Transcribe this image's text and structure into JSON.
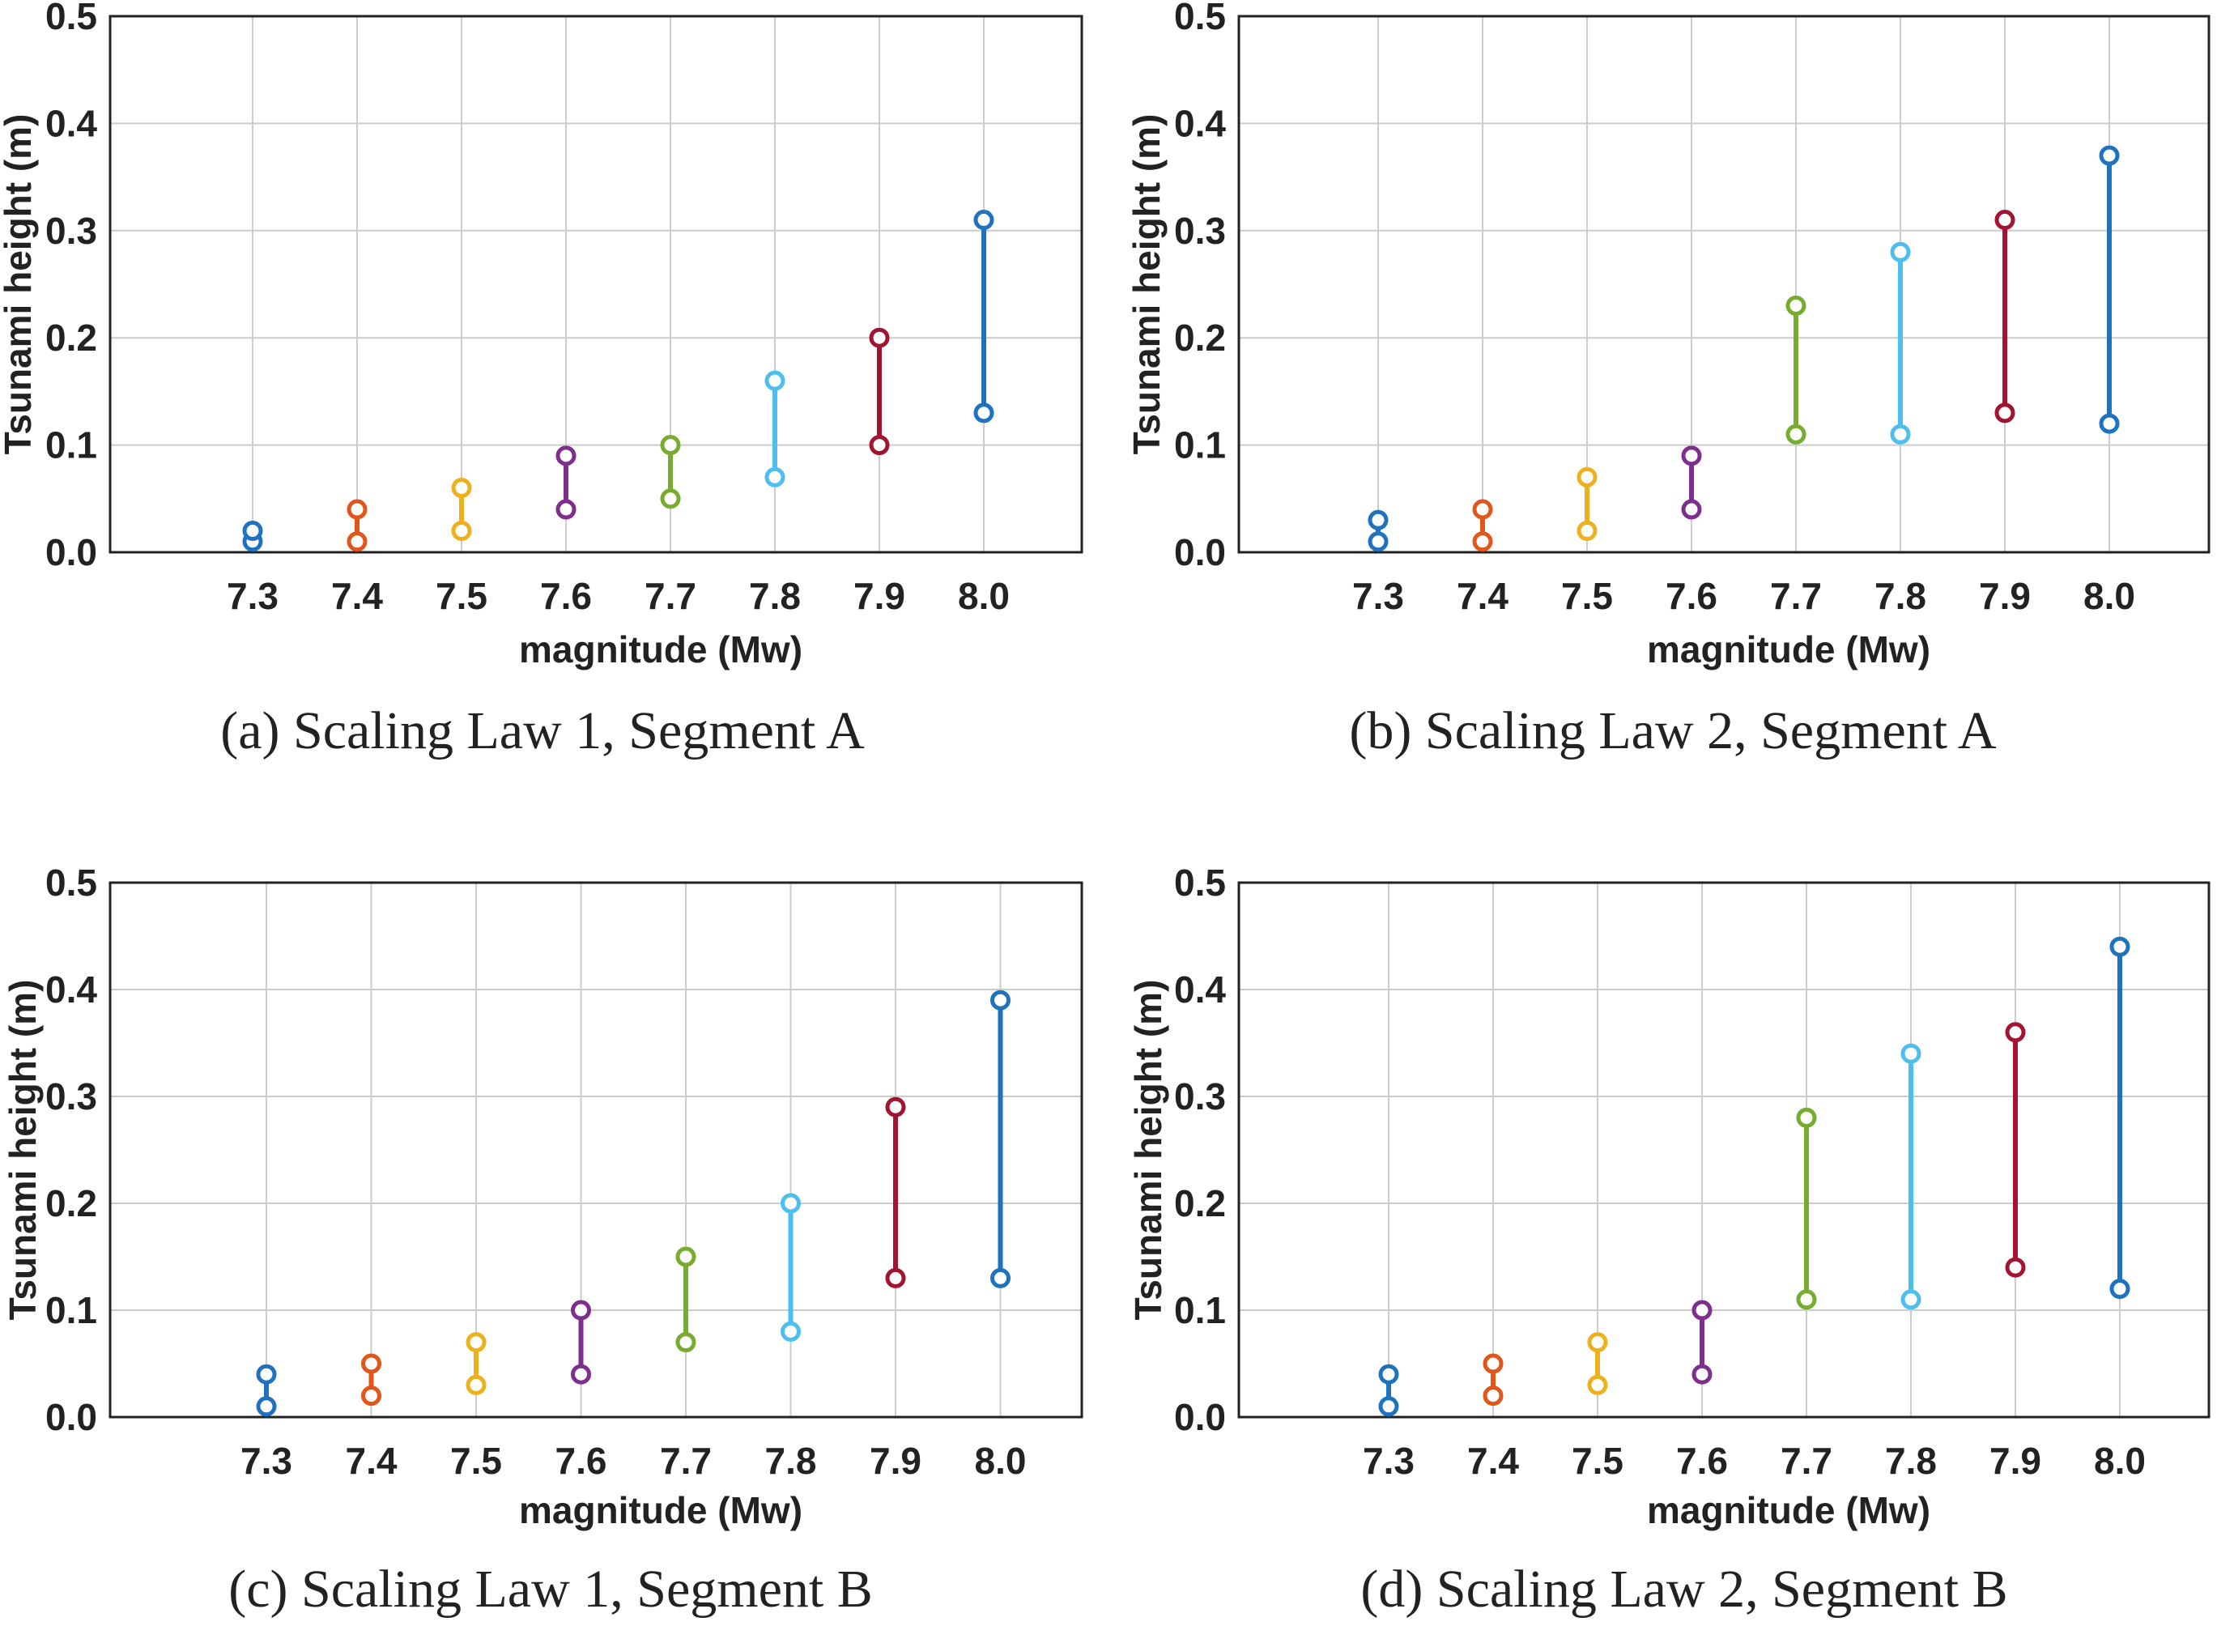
{
  "chart_data": [
    {
      "type": "range",
      "caption": "(a) Scaling Law 1, Segment A",
      "xlabel": "magnitude (Mw)",
      "ylabel": "Tsunami height (m)",
      "categories": [
        "7.3",
        "7.4",
        "7.5",
        "7.6",
        "7.7",
        "7.8",
        "7.9",
        "8.0"
      ],
      "yticks": [
        "0.0",
        "0.1",
        "0.2",
        "0.3",
        "0.4",
        "0.5"
      ],
      "ylim": [
        0,
        0.5
      ],
      "grid": true,
      "low": [
        0.01,
        0.01,
        0.02,
        0.04,
        0.05,
        0.07,
        0.1,
        0.13
      ],
      "high": [
        0.02,
        0.04,
        0.06,
        0.09,
        0.1,
        0.16,
        0.2,
        0.31
      ]
    },
    {
      "type": "range",
      "caption": "(b) Scaling Law 2, Segment A",
      "xlabel": "magnitude (Mw)",
      "ylabel": "Tsunami height (m)",
      "categories": [
        "7.3",
        "7.4",
        "7.5",
        "7.6",
        "7.7",
        "7.8",
        "7.9",
        "8.0"
      ],
      "yticks": [
        "0.0",
        "0.1",
        "0.2",
        "0.3",
        "0.4",
        "0.5"
      ],
      "ylim": [
        0,
        0.5
      ],
      "grid": true,
      "low": [
        0.01,
        0.01,
        0.02,
        0.04,
        0.11,
        0.11,
        0.13,
        0.12
      ],
      "high": [
        0.03,
        0.04,
        0.07,
        0.09,
        0.23,
        0.28,
        0.31,
        0.37
      ]
    },
    {
      "type": "range",
      "caption": "(c) Scaling Law 1, Segment B",
      "xlabel": "magnitude (Mw)",
      "ylabel": "Tsunami height (m)",
      "categories": [
        "7.3",
        "7.4",
        "7.5",
        "7.6",
        "7.7",
        "7.8",
        "7.9",
        "8.0"
      ],
      "yticks": [
        "0.0",
        "0.1",
        "0.2",
        "0.3",
        "0.4",
        "0.5"
      ],
      "ylim": [
        0,
        0.5
      ],
      "grid": true,
      "low": [
        0.01,
        0.02,
        0.03,
        0.04,
        0.07,
        0.08,
        0.13,
        0.13
      ],
      "high": [
        0.04,
        0.05,
        0.07,
        0.1,
        0.15,
        0.2,
        0.29,
        0.39
      ]
    },
    {
      "type": "range",
      "caption": "(d) Scaling Law 2, Segment B",
      "xlabel": "magnitude (Mw)",
      "ylabel": "Tsunami height (m)",
      "categories": [
        "7.3",
        "7.4",
        "7.5",
        "7.6",
        "7.7",
        "7.8",
        "7.9",
        "8.0"
      ],
      "yticks": [
        "0.0",
        "0.1",
        "0.2",
        "0.3",
        "0.4",
        "0.5"
      ],
      "ylim": [
        0,
        0.5
      ],
      "grid": true,
      "low": [
        0.01,
        0.02,
        0.03,
        0.04,
        0.11,
        0.11,
        0.14,
        0.12
      ],
      "high": [
        0.04,
        0.05,
        0.07,
        0.1,
        0.28,
        0.34,
        0.36,
        0.44
      ]
    }
  ],
  "colors": [
    "#1f72bd",
    "#e0561b",
    "#edb11d",
    "#7e2f8e",
    "#77ac30",
    "#4dbeee",
    "#a2142f",
    "#1f72bd"
  ]
}
